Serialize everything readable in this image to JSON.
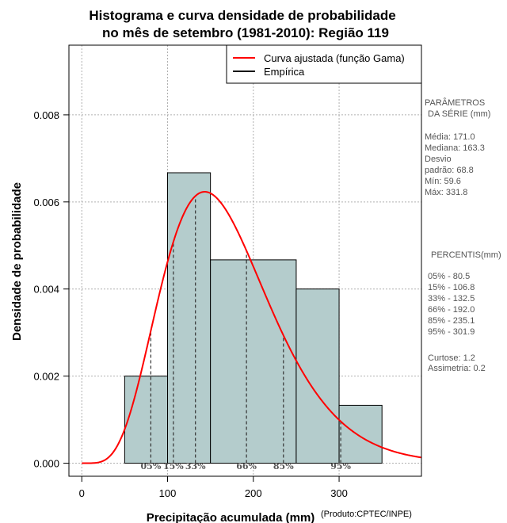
{
  "chart_data": {
    "type": "bar",
    "title_line1": "Histograma e curva densidade de probabilidade",
    "title_line2": "no mês de setembro (1981-2010): Região 119",
    "xlabel": "Precipitação acumulada (mm)",
    "ylabel": "Densidade de probabilidade",
    "credit": "(Produto:CPTEC/INPE)",
    "xlim": [
      -15,
      396
    ],
    "ylim": [
      -0.0003,
      0.0096
    ],
    "x_ticks": [
      {
        "value": 0,
        "label": "0"
      },
      {
        "value": 100,
        "label": "100"
      },
      {
        "value": 200,
        "label": "200"
      },
      {
        "value": 300,
        "label": "300"
      }
    ],
    "y_ticks": [
      {
        "value": 0,
        "label": "0.000"
      },
      {
        "value": 0.002,
        "label": "0.002"
      },
      {
        "value": 0.004,
        "label": "0.004"
      },
      {
        "value": 0.006,
        "label": "0.006"
      },
      {
        "value": 0.008,
        "label": "0.008"
      }
    ],
    "grid": true,
    "bins": [
      {
        "x0": 50,
        "x1": 100,
        "density": 0.002
      },
      {
        "x0": 100,
        "x1": 150,
        "density": 0.00667
      },
      {
        "x0": 150,
        "x1": 250,
        "density": 0.00467
      },
      {
        "x0": 250,
        "x1": 300,
        "density": 0.004
      },
      {
        "x0": 300,
        "x1": 350,
        "density": 0.00133
      }
    ],
    "bar_color": "#b4cccc",
    "curve": {
      "distribution": "gamma",
      "mean": 171.0,
      "sd": 68.8,
      "color": "#ff0000"
    },
    "legend": [
      {
        "label": "Curva ajustada (função Gama)",
        "color": "#ff0000"
      },
      {
        "label": "Empírica",
        "color": "#000000"
      }
    ],
    "percentile_markers": [
      {
        "label": "05%",
        "value": 80.5
      },
      {
        "label": "15%",
        "value": 106.8
      },
      {
        "label": "33%",
        "value": 132.5
      },
      {
        "label": "66%",
        "value": 192.0
      },
      {
        "label": "85%",
        "value": 235.1
      },
      {
        "label": "95%",
        "value": 301.9
      }
    ]
  },
  "side_panel": {
    "params_title_1": "PARÂMETROS",
    "params_title_2": "DA SÉRIE (mm)",
    "media": "Média:  171.0",
    "mediana": "Mediana:  163.3",
    "desvio_1": "Desvio",
    "desvio_2": "padrão:  68.8",
    "min": "Mín:  59.6",
    "max": "Máx:  331.8",
    "percentis_title": "PERCENTIS(mm)",
    "p05": "05% -   80.5",
    "p15": "15% -   106.8",
    "p33": "33% -   132.5",
    "p66": "66% -   192.0",
    "p85": "85% -   235.1",
    "p95": "95% -   301.9",
    "curtose": "Curtose:  1.2",
    "assimetria": "Assimetria:  0.2"
  }
}
